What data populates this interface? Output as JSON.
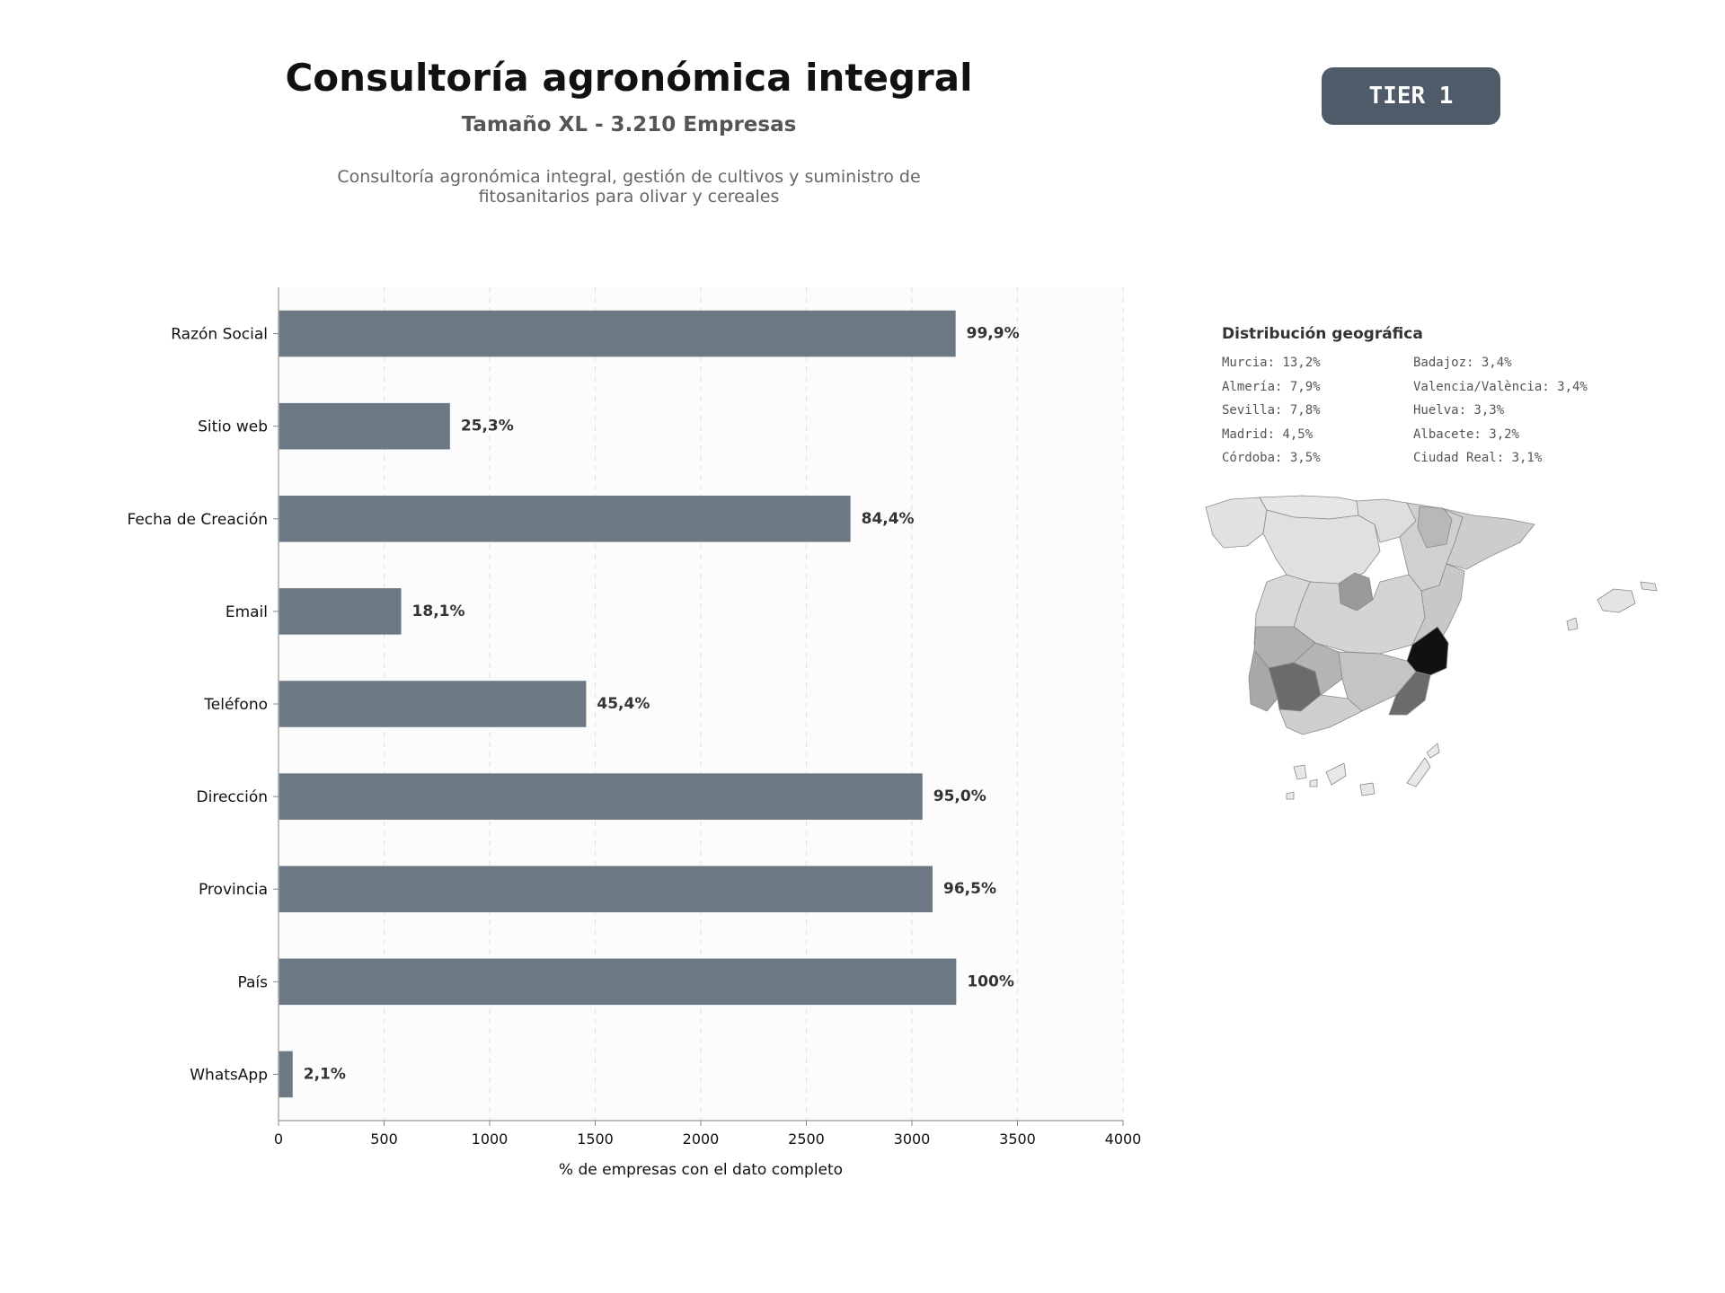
{
  "header": {
    "title": "Consultoría agronómica integral",
    "subtitle": "Tamaño XL - 3.210 Empresas",
    "description": "Consultoría agronómica integral, gestión de cultivos y suministro de fitosanitarios para olivar y cereales",
    "tier": "TIER 1"
  },
  "chart_data": {
    "type": "bar",
    "orientation": "horizontal",
    "categories": [
      "Razón Social",
      "Sitio web",
      "Fecha de Creación",
      "Email",
      "Teléfono",
      "Dirección",
      "Provincia",
      "País",
      "WhatsApp"
    ],
    "values": [
      3207,
      812,
      2709,
      581,
      1457,
      3050,
      3098,
      3210,
      67
    ],
    "labels": [
      "99,9%",
      "25,3%",
      "84,4%",
      "18,1%",
      "45,4%",
      "95,0%",
      "96,5%",
      "100%",
      "2,1%"
    ],
    "xlabel": "% de empresas con el dato completo",
    "xlim": [
      0,
      4000
    ],
    "xticks": [
      0,
      500,
      1000,
      1500,
      2000,
      2500,
      3000,
      3500,
      4000
    ],
    "grid": "vertical dashed",
    "bar_color": "#6c7883"
  },
  "geo": {
    "title": "Distribución geográfica",
    "items": [
      "Murcia: 13,2%",
      "Almería: 7,9%",
      "Sevilla: 7,8%",
      "Madrid: 4,5%",
      "Córdoba: 3,5%",
      "Badajoz: 3,4%",
      "Valencia/València: 3,4%",
      "Huelva: 3,3%",
      "Albacete: 3,2%",
      "Ciudad Real: 3,1%"
    ],
    "map": {
      "highlight_colors": {
        "murcia": "#111111",
        "almeria": "#6b6b6b",
        "sevilla": "#6b6b6b",
        "madrid": "#9a9a9a",
        "default": "#dddddd"
      }
    }
  }
}
